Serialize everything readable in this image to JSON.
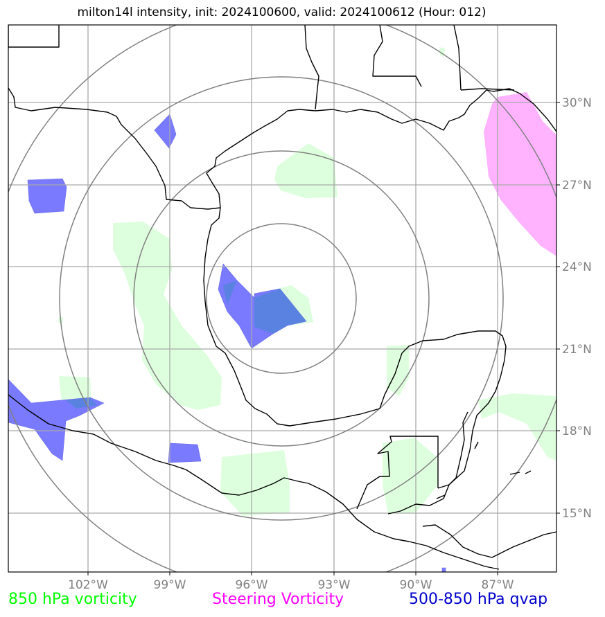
{
  "title": "milton14l intensity, init: 2024100600, valid: 2024100612 (Hour: 012)",
  "lon_ticks": [
    "102°W",
    "99°W",
    "96°W",
    "93°W",
    "90°W",
    "87°W"
  ],
  "lat_ticks": [
    "30°N",
    "27°N",
    "24°N",
    "21°N",
    "18°N",
    "15°N"
  ],
  "legend": [
    {
      "label": "850 hPa vorticity",
      "color": "#00ff00"
    },
    {
      "label": "Steering Vorticity",
      "color": "#ff00ff"
    },
    {
      "label": "500-850 hPa qvap",
      "color": "#0000cc"
    }
  ],
  "colors": {
    "vorticity_fill": "#ddffdd",
    "steering_fill": "#ffb3ff",
    "qvap_fill": "#7a7aff",
    "rings": "#808080",
    "grid": "#a9a9a9",
    "coast": "#000000"
  }
}
